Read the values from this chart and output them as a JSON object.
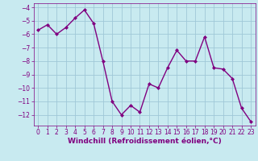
{
  "x": [
    0,
    1,
    2,
    3,
    4,
    5,
    6,
    7,
    8,
    9,
    10,
    11,
    12,
    13,
    14,
    15,
    16,
    17,
    18,
    19,
    20,
    21,
    22,
    23
  ],
  "y": [
    -5.7,
    -5.3,
    -6.0,
    -5.5,
    -4.8,
    -4.2,
    -5.2,
    -8.0,
    -11.0,
    -12.0,
    -11.3,
    -11.8,
    -9.7,
    -10.0,
    -8.5,
    -7.2,
    -8.0,
    -8.0,
    -6.2,
    -8.5,
    -8.6,
    -9.3,
    -11.5,
    -12.5
  ],
  "line_color": "#800080",
  "marker": "D",
  "marker_size": 2,
  "bg_color": "#c8eaf0",
  "grid_color": "#a0c8d8",
  "xlabel": "Windchill (Refroidissement éolien,°C)",
  "ylim": [
    -12.8,
    -3.7
  ],
  "xlim": [
    -0.5,
    23.5
  ],
  "yticks": [
    -12,
    -11,
    -10,
    -9,
    -8,
    -7,
    -6,
    -5,
    -4
  ],
  "xticks": [
    0,
    1,
    2,
    3,
    4,
    5,
    6,
    7,
    8,
    9,
    10,
    11,
    12,
    13,
    14,
    15,
    16,
    17,
    18,
    19,
    20,
    21,
    22,
    23
  ],
  "tick_fontsize": 5.5,
  "xlabel_fontsize": 6.5,
  "line_width": 1.0
}
